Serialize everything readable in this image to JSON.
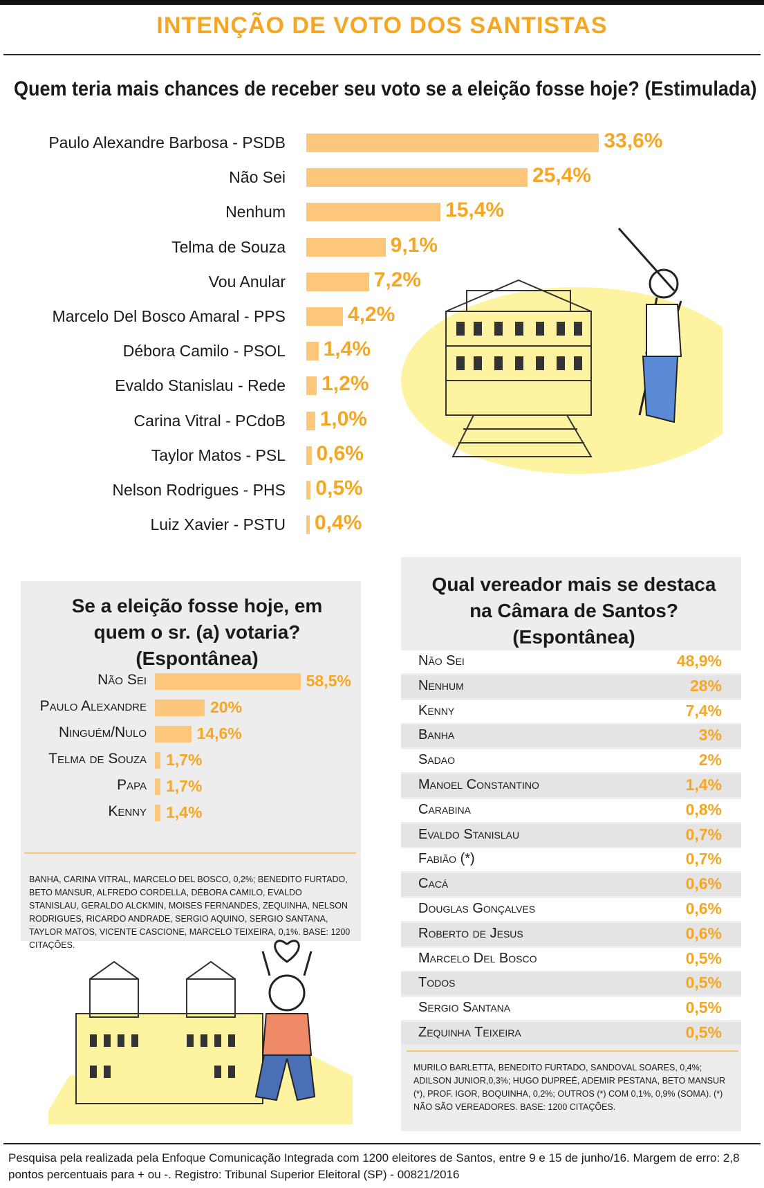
{
  "title": "INTENÇÃO DE VOTO DOS SANTISTAS",
  "chart_data": [
    {
      "type": "bar",
      "orientation": "horizontal",
      "title": "Quem teria mais chances de receber seu voto se a eleição fosse hoje? (Estimulada)",
      "categories": [
        "Paulo Alexandre Barbosa - PSDB",
        "Não Sei",
        "Nenhum",
        "Telma de Souza",
        "Vou Anular",
        "Marcelo Del Bosco Amaral - PPS",
        "Débora Camilo - PSOL",
        "Evaldo Stanislau - Rede",
        "Carina Vitral - PCdoB",
        "Taylor Matos - PSL",
        "Nelson Rodrigues - PHS",
        "Luiz Xavier - PSTU"
      ],
      "values": [
        33.6,
        25.4,
        15.4,
        9.1,
        7.2,
        4.2,
        1.4,
        1.2,
        1.0,
        0.6,
        0.5,
        0.4
      ],
      "labels": [
        "33,6%",
        "25,4%",
        "15,4%",
        "9,1%",
        "7,2%",
        "4,2%",
        "1,4%",
        "1,2%",
        "1,0%",
        "0,6%",
        "0,5%",
        "0,4%"
      ],
      "bar_color": "#fcc77a",
      "label_color": "#f5a623"
    },
    {
      "type": "bar",
      "orientation": "horizontal",
      "title": "Se a eleição fosse hoje, em quem o sr. (a) votaria? (Espontânea)",
      "categories": [
        "Não Sei",
        "Paulo Alexandre",
        "Ninguém/Nulo",
        "Telma de Souza",
        "Papa",
        "Kenny"
      ],
      "values": [
        58.5,
        20,
        14.6,
        1.7,
        1.7,
        1.4
      ],
      "labels": [
        "58,5%",
        "20%",
        "14,6%",
        "1,7%",
        "1,7%",
        "1,4%"
      ],
      "note": "BANHA, CARINA VITRAL, MARCELO DEL BOSCO, 0,2%; BENEDITO FURTADO, BETO MANSUR, ALFREDO CORDELLA, DÉBORA CAMILO, EVALDO STANISLAU, GERALDO ALCKMIN, MOISES FERNANDES, ZEQUINHA, NELSON RODRIGUES, RICARDO ANDRADE, SERGIO AQUINO, SERGIO SANTANA, TAYLOR MATOS, VICENTE CASCIONE, MARCELO TEIXEIRA, 0,1%. BASE: 1200 CITAÇÕES."
    },
    {
      "type": "table",
      "title": "Qual vereador mais se destaca na Câmara de Santos? (Espontânea)",
      "rows": [
        {
          "name": "Não Sei",
          "value": 48.9,
          "label": "48,9%"
        },
        {
          "name": "Nenhum",
          "value": 28,
          "label": "28%"
        },
        {
          "name": "Kenny",
          "value": 7.4,
          "label": "7,4%"
        },
        {
          "name": "Banha",
          "value": 3,
          "label": "3%"
        },
        {
          "name": "Sadao",
          "value": 2,
          "label": "2%"
        },
        {
          "name": "Manoel Constantino",
          "value": 1.4,
          "label": "1,4%"
        },
        {
          "name": "Carabina",
          "value": 0.8,
          "label": "0,8%"
        },
        {
          "name": "Evaldo Stanislau",
          "value": 0.7,
          "label": "0,7%"
        },
        {
          "name": "Fabião (*)",
          "value": 0.7,
          "label": "0,7%"
        },
        {
          "name": "Cacá",
          "value": 0.6,
          "label": "0,6%"
        },
        {
          "name": "Douglas Gonçalves",
          "value": 0.6,
          "label": "0,6%"
        },
        {
          "name": "Roberto de Jesus",
          "value": 0.6,
          "label": "0,6%"
        },
        {
          "name": "Marcelo Del Bosco",
          "value": 0.5,
          "label": "0,5%"
        },
        {
          "name": "Todos",
          "value": 0.5,
          "label": "0,5%"
        },
        {
          "name": "Sergio Santana",
          "value": 0.5,
          "label": "0,5%"
        },
        {
          "name": "Zequinha Teixeira",
          "value": 0.5,
          "label": "0,5%"
        }
      ],
      "note": "MURILO BARLETTA, BENEDITO FURTADO, SANDOVAL SOARES, 0,4%; ADILSON JUNIOR,0,3%; HUGO DUPREÉ, ADEMIR PESTANA, BETO MANSUR (*), PROF. IGOR, BOQUINHA, 0,2%; OUTROS (*) COM 0,1%, 0,9% (SOMA). (*) NÃO SÃO VEREADORES. BASE: 1200 CITAÇÕES."
    }
  ],
  "footer": "Pesquisa pela realizada pela Enfoque Comunicação Integrada com 1200 eleitores de Santos, entre 9 e 15 de junho/16. Margem de erro: 2,8 pontos percentuais para + ou -. Registro: Tribunal Superior Eleitoral (SP) - 00821/2016"
}
